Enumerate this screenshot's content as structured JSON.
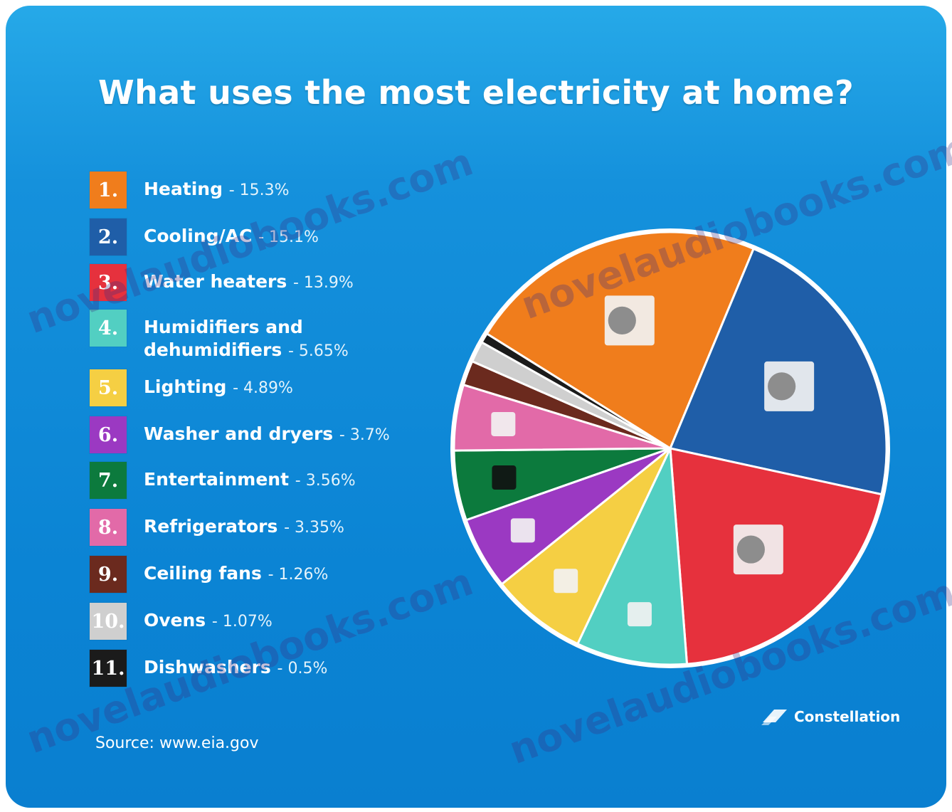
{
  "title": "What uses the most electricity at home?",
  "source": "Source: www.eia.gov",
  "brand": "Constellation",
  "watermark": "novelaudiobooks.com",
  "colors": {
    "background": "#0b84d4",
    "pie_border": "#ffffff"
  },
  "chart_data": {
    "type": "pie",
    "title": "What uses the most electricity at home?",
    "slices": [
      {
        "rank": "1.",
        "label": "Heating",
        "value": 15.3,
        "value_label": "- 15.3%",
        "color": "#f07d1c",
        "icon": "radiator-icon"
      },
      {
        "rank": "2.",
        "label": "Cooling/AC",
        "value": 15.1,
        "value_label": "- 15.1%",
        "color": "#1f5ea8",
        "icon": "ac-unit-icon"
      },
      {
        "rank": "3.",
        "label": "Water heaters",
        "value": 13.9,
        "value_label": "- 13.9%",
        "color": "#e6313d",
        "icon": "water-heater-icon"
      },
      {
        "rank": "4.",
        "label": "Humidifiers and dehumidifiers",
        "value": 5.65,
        "value_label": "- 5.65%",
        "color": "#52cfc2",
        "icon": "humidifier-icon"
      },
      {
        "rank": "5.",
        "label": "Lighting",
        "value": 4.89,
        "value_label": "- 4.89%",
        "color": "#f5cf43",
        "icon": "lightbulb-icon"
      },
      {
        "rank": "6.",
        "label": "Washer and dryers",
        "value": 3.7,
        "value_label": "- 3.7%",
        "color": "#9b39c2",
        "icon": "washer-icon"
      },
      {
        "rank": "7.",
        "label": "Entertainment",
        "value": 3.56,
        "value_label": "- 3.56%",
        "color": "#0c7a3d",
        "icon": "tv-icon"
      },
      {
        "rank": "8.",
        "label": "Refrigerators",
        "value": 3.35,
        "value_label": "- 3.35%",
        "color": "#e26aa8",
        "icon": "fridge-icon"
      },
      {
        "rank": "9.",
        "label": "Ceiling fans",
        "value": 1.26,
        "value_label": "- 1.26%",
        "color": "#6b2a1e",
        "icon": "ceiling-fan-icon"
      },
      {
        "rank": "10.",
        "label": "Ovens",
        "value": 1.07,
        "value_label": "- 1.07%",
        "color": "#cfcfcf",
        "icon": "oven-icon"
      },
      {
        "rank": "11.",
        "label": "Dishwashers",
        "value": 0.5,
        "value_label": "- 0.5%",
        "color": "#1b1b1b",
        "icon": "dishwasher-icon"
      }
    ],
    "legend": "left"
  }
}
